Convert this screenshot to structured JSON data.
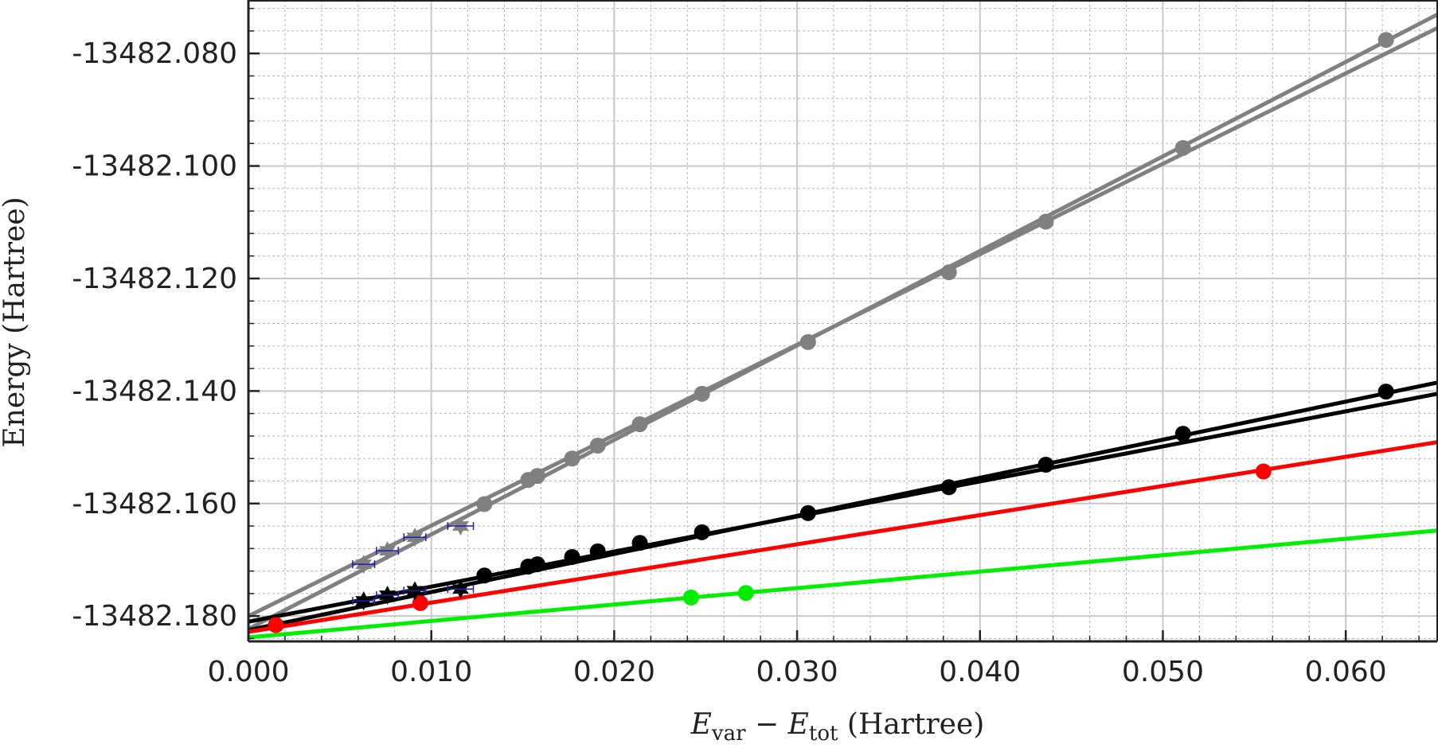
{
  "chart_data": {
    "type": "scatter",
    "title": "",
    "xlabel_parts": {
      "e1": "E",
      "s1": "var",
      "minus": " − ",
      "e2": "E",
      "s2": "tot",
      "unit": " (Hartree)"
    },
    "ylabel": "Energy (Hartree)",
    "xlim": [
      0.0,
      0.065
    ],
    "ylim": [
      -13482.1845,
      -13482.0705
    ],
    "xticks": [
      0.0,
      0.01,
      0.02,
      0.03,
      0.04,
      0.05,
      0.06
    ],
    "xtick_labels": [
      "0.000",
      "0.010",
      "0.020",
      "0.030",
      "0.040",
      "0.050",
      "0.060"
    ],
    "yticks": [
      -13482.18,
      -13482.16,
      -13482.14,
      -13482.12,
      -13482.1,
      -13482.08
    ],
    "ytick_labels": [
      "-13482.180",
      "-13482.160",
      "-13482.140",
      "-13482.120",
      "-13482.100",
      "-13482.080"
    ],
    "grid": true,
    "series": [
      {
        "name": "gray-points",
        "color": "#808080",
        "marker": "circle",
        "points": [
          [
            0.0622,
            -13482.0776
          ],
          [
            0.0511,
            -13482.0968
          ],
          [
            0.0436,
            -13482.1099
          ],
          [
            0.0383,
            -13482.1189
          ],
          [
            0.0306,
            -13482.1313
          ],
          [
            0.0248,
            -13482.1405
          ],
          [
            0.0214,
            -13482.1459
          ],
          [
            0.0191,
            -13482.1497
          ],
          [
            0.0177,
            -13482.152
          ],
          [
            0.0158,
            -13482.1551
          ],
          [
            0.0153,
            -13482.1558
          ],
          [
            0.0129,
            -13482.1601
          ]
        ],
        "fit_lines": [
          [
            [
              0.0,
              -13482.1823
            ],
            [
              0.065,
              -13482.0731
            ]
          ],
          [
            [
              0.0,
              -13482.18
            ],
            [
              0.065,
              -13482.0755
            ]
          ]
        ]
      },
      {
        "name": "black-points",
        "color": "#000000",
        "marker": "circle",
        "points": [
          [
            0.0622,
            -13482.1401
          ],
          [
            0.0511,
            -13482.1476
          ],
          [
            0.0436,
            -13482.1531
          ],
          [
            0.0383,
            -13482.1571
          ],
          [
            0.0306,
            -13482.1617
          ],
          [
            0.0248,
            -13482.1651
          ],
          [
            0.0214,
            -13482.167
          ],
          [
            0.0191,
            -13482.1685
          ],
          [
            0.0177,
            -13482.1695
          ],
          [
            0.0158,
            -13482.1708
          ],
          [
            0.0153,
            -13482.1712
          ],
          [
            0.0129,
            -13482.1728
          ]
        ],
        "fit_lines": [
          [
            [
              0.0,
              -13482.1825
            ],
            [
              0.065,
              -13482.1385
            ]
          ],
          [
            [
              0.0,
              -13482.181
            ],
            [
              0.065,
              -13482.1405
            ]
          ]
        ]
      },
      {
        "name": "red-points",
        "color": "#ff0000",
        "marker": "circle",
        "points": [
          [
            0.0015,
            -13482.1816
          ],
          [
            0.0094,
            -13482.1777
          ],
          [
            0.0555,
            -13482.1543
          ]
        ],
        "fit_lines": [
          [
            [
              0.0,
              -13482.1828
            ],
            [
              0.065,
              -13482.1491
            ]
          ]
        ]
      },
      {
        "name": "green-points",
        "color": "#00ee00",
        "marker": "circle",
        "points": [
          [
            0.0242,
            -13482.1767
          ],
          [
            0.0272,
            -13482.1759
          ]
        ],
        "fit_lines": [
          [
            [
              0.0,
              -13482.1838
            ],
            [
              0.065,
              -13482.1648
            ]
          ]
        ]
      },
      {
        "name": "gray-stars",
        "color": "#808080",
        "marker": "star",
        "error_color": "#1f1fb4",
        "points": [
          [
            0.0063,
            -13482.1708,
            0.0006
          ],
          [
            0.0076,
            -13482.1684,
            0.0006
          ],
          [
            0.0091,
            -13482.166,
            0.0006
          ],
          [
            0.0116,
            -13482.164,
            0.0007
          ]
        ]
      },
      {
        "name": "black-stars",
        "color": "#000000",
        "marker": "star",
        "error_color": "#1f1fb4",
        "points": [
          [
            0.0063,
            -13482.1773,
            0.0006
          ],
          [
            0.0076,
            -13482.1763,
            0.0006
          ],
          [
            0.0091,
            -13482.1755,
            0.0006
          ],
          [
            0.0116,
            -13482.1752,
            0.0007
          ]
        ]
      }
    ]
  }
}
